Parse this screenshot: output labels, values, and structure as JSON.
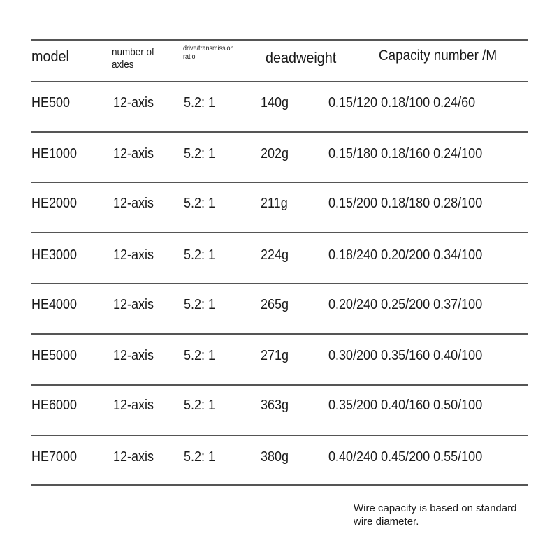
{
  "header": {
    "model": "model",
    "axles_line1": "number of",
    "axles_line2": "axles",
    "ratio_line1": "drive/transmission",
    "ratio_line2": "ratio",
    "weight": "deadweight",
    "capacity": "Capacity number /M"
  },
  "rows": [
    {
      "model": "HE500",
      "axles": "12-axis",
      "ratio": "5.2: 1",
      "weight": "140g",
      "capacity": "0.15/120 0.18/100 0.24/60"
    },
    {
      "model": "HE1000",
      "axles": "12-axis",
      "ratio": "5.2: 1",
      "weight": "202g",
      "capacity": "0.15/180 0.18/160 0.24/100"
    },
    {
      "model": "HE2000",
      "axles": "12-axis",
      "ratio": "5.2: 1",
      "weight": "211g",
      "capacity": "0.15/200 0.18/180 0.28/100"
    },
    {
      "model": "HE3000",
      "axles": "12-axis",
      "ratio": "5.2: 1",
      "weight": "224g",
      "capacity": "0.18/240 0.20/200 0.34/100"
    },
    {
      "model": "HE4000",
      "axles": "12-axis",
      "ratio": "5.2: 1",
      "weight": "265g",
      "capacity": "0.20/240 0.25/200 0.37/100"
    },
    {
      "model": "HE5000",
      "axles": "12-axis",
      "ratio": "5.2: 1",
      "weight": "271g",
      "capacity": "0.30/200 0.35/160 0.40/100"
    },
    {
      "model": "HE6000",
      "axles": "12-axis",
      "ratio": "5.2: 1",
      "weight": "363g",
      "capacity": "0.35/200 0.40/160 0.50/100"
    },
    {
      "model": "HE7000",
      "axles": "12-axis",
      "ratio": "5.2: 1",
      "weight": "380g",
      "capacity": "0.40/240 0.45/200 0.55/100"
    }
  ],
  "note_line1": "Wire capacity is based on standard",
  "note_line2": "wire diameter."
}
